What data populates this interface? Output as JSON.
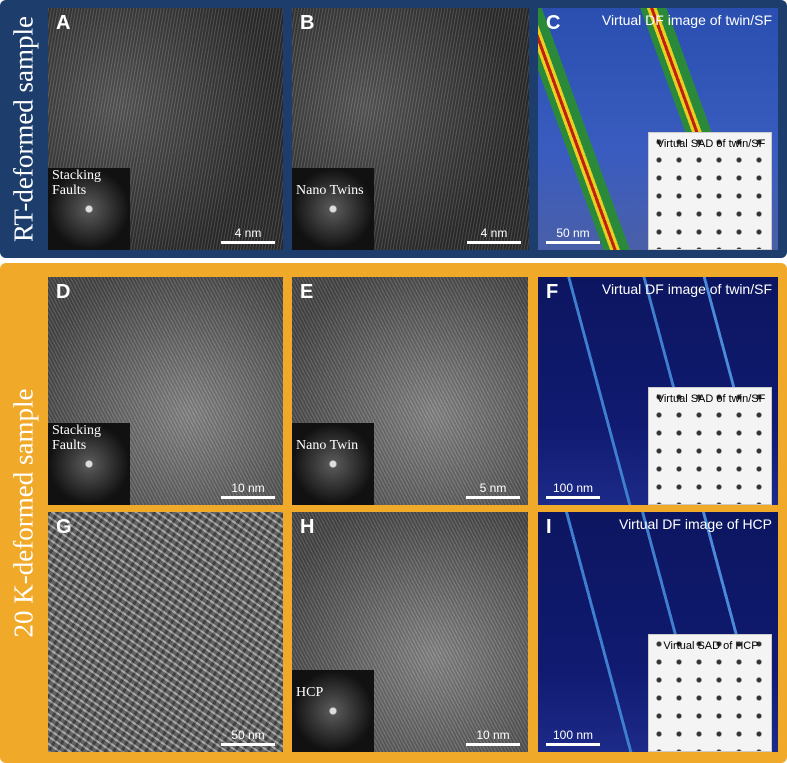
{
  "sections": [
    {
      "label": "RT-deformed sample",
      "panels": [
        {
          "letter": "A",
          "inset": "Stacking Faults",
          "scale": "4 nm"
        },
        {
          "letter": "B",
          "inset": "Nano Twins",
          "scale": "4 nm"
        },
        {
          "letter": "C",
          "title": "Virtual DF image of twin/SF",
          "inset": "Virtual SAD of twin/SF",
          "scale": "50 nm"
        }
      ]
    },
    {
      "label": "20 K-deformed sample",
      "panels": [
        {
          "letter": "D",
          "inset": "Stacking Faults",
          "scale": "10 nm"
        },
        {
          "letter": "E",
          "inset": "Nano Twin",
          "scale": "5 nm"
        },
        {
          "letter": "F",
          "title": "Virtual DF image of twin/SF",
          "inset": "Virtual SAD of twin/SF",
          "scale": "100 nm"
        },
        {
          "letter": "G",
          "scale": "50 nm"
        },
        {
          "letter": "H",
          "inset": "HCP",
          "scale": "10 nm"
        },
        {
          "letter": "I",
          "title": "Virtual DF image of HCP",
          "inset": "Virtual SAD of HCP",
          "scale": "100 nm"
        }
      ]
    }
  ]
}
